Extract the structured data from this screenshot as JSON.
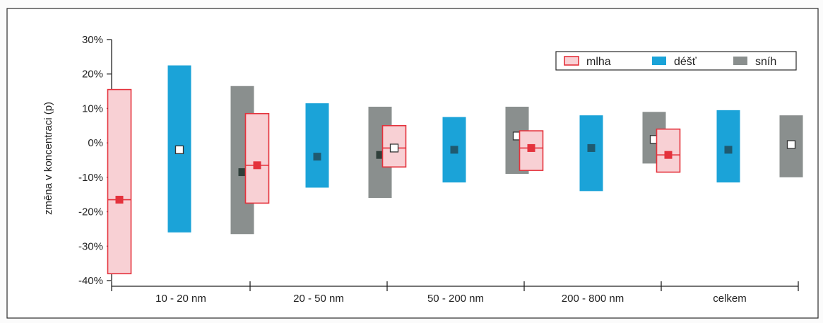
{
  "chart_data": {
    "type": "bar",
    "title": "",
    "ylabel": "změna v koncentraci (p)",
    "xlabel": "",
    "ylim": [
      -0.4,
      0.3
    ],
    "yticks": [
      0.3,
      0.2,
      0.1,
      0.0,
      -0.1,
      -0.2,
      -0.3,
      -0.4
    ],
    "ytick_labels": [
      "30%",
      "20%",
      "10%",
      "0%",
      "-10%",
      "-20%",
      "-30%",
      "-40%"
    ],
    "categories": [
      "10 - 20 nm",
      "20 - 50 nm",
      "50 - 200 nm",
      "200 - 800 nm",
      "celkem"
    ],
    "grid": false,
    "legend_position": "top-right",
    "series": [
      {
        "name": "mlha",
        "fill": "#f8d0d4",
        "stroke": "#e4323c",
        "marker": "#e4323c",
        "low": [
          -0.38,
          -0.175,
          -0.07,
          -0.08,
          -0.085
        ],
        "high": [
          0.155,
          0.085,
          0.05,
          0.035,
          0.04
        ],
        "center": [
          -0.165,
          -0.065,
          -0.015,
          -0.015,
          -0.035
        ]
      },
      {
        "name": "déšť",
        "fill": "#1ba3d8",
        "stroke": "#1ba3d8",
        "marker": "#1f5a70",
        "low": [
          -0.26,
          -0.13,
          -0.115,
          -0.14,
          -0.115
        ],
        "high": [
          0.225,
          0.115,
          0.075,
          0.08,
          0.095
        ],
        "center": [
          -0.02,
          -0.04,
          -0.02,
          -0.015,
          -0.02
        ]
      },
      {
        "name": "sníh",
        "fill": "#8a8f8e",
        "stroke": "#8a8f8e",
        "marker": "#2f3f3a",
        "low": [
          -0.265,
          -0.16,
          -0.09,
          -0.06,
          -0.1
        ],
        "high": [
          0.165,
          0.105,
          0.105,
          0.09,
          0.08
        ],
        "center": [
          -0.085,
          -0.035,
          0.02,
          0.01,
          -0.005
        ]
      }
    ],
    "marker_white": [
      [
        false,
        true,
        false
      ],
      [
        false,
        false,
        false
      ],
      [
        true,
        false,
        true
      ],
      [
        false,
        false,
        true
      ],
      [
        false,
        false,
        true
      ]
    ]
  }
}
